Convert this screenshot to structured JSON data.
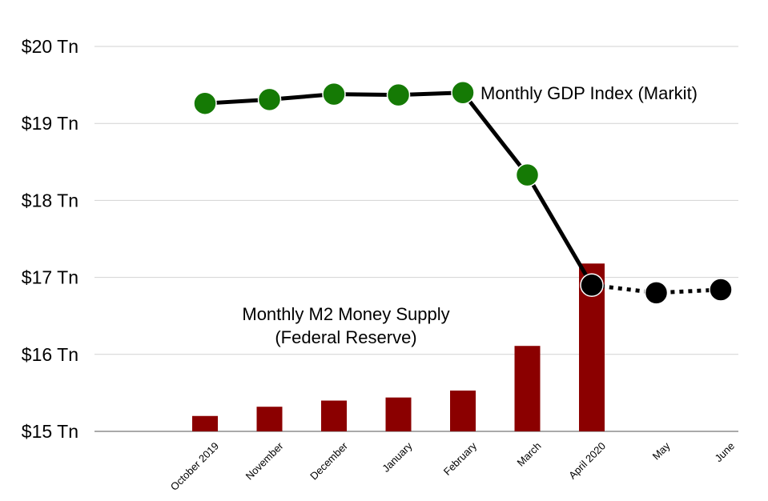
{
  "chart_data": {
    "type": "bar+line",
    "ylim": [
      15,
      20
    ],
    "y_ticks": [
      "$15 Tn",
      "$16 Tn",
      "$17 Tn",
      "$18 Tn",
      "$19 Tn",
      "$20 Tn"
    ],
    "y_tick_values": [
      15,
      16,
      17,
      18,
      19,
      20
    ],
    "grid": true,
    "categories": [
      "October 2019",
      "November",
      "December",
      "January",
      "February",
      "March",
      "April 2020",
      "May",
      "June"
    ],
    "series": [
      {
        "name": "Monthly M2 Money Supply (Federal Reserve)",
        "kind": "bar",
        "color": "#8b0000",
        "values": [
          15.2,
          15.32,
          15.4,
          15.44,
          15.53,
          16.11,
          17.18,
          null,
          null
        ]
      },
      {
        "name": "Monthly GDP Index (Markit)",
        "kind": "line",
        "marker_color": "#157a05",
        "line_color": "#000000",
        "values": [
          19.26,
          19.31,
          19.38,
          19.37,
          19.4,
          18.33,
          null,
          null,
          null
        ]
      },
      {
        "kind": "line-dotted",
        "marker_color": "#000000",
        "line_color": "#000000",
        "values": [
          null,
          null,
          null,
          null,
          null,
          null,
          16.9,
          16.8,
          16.84
        ]
      }
    ],
    "annotations": [
      {
        "text": "Monthly GDP Index (Markit)"
      },
      {
        "text": "Monthly M2 Money Supply"
      },
      {
        "text": "(Federal Reserve)"
      }
    ]
  }
}
